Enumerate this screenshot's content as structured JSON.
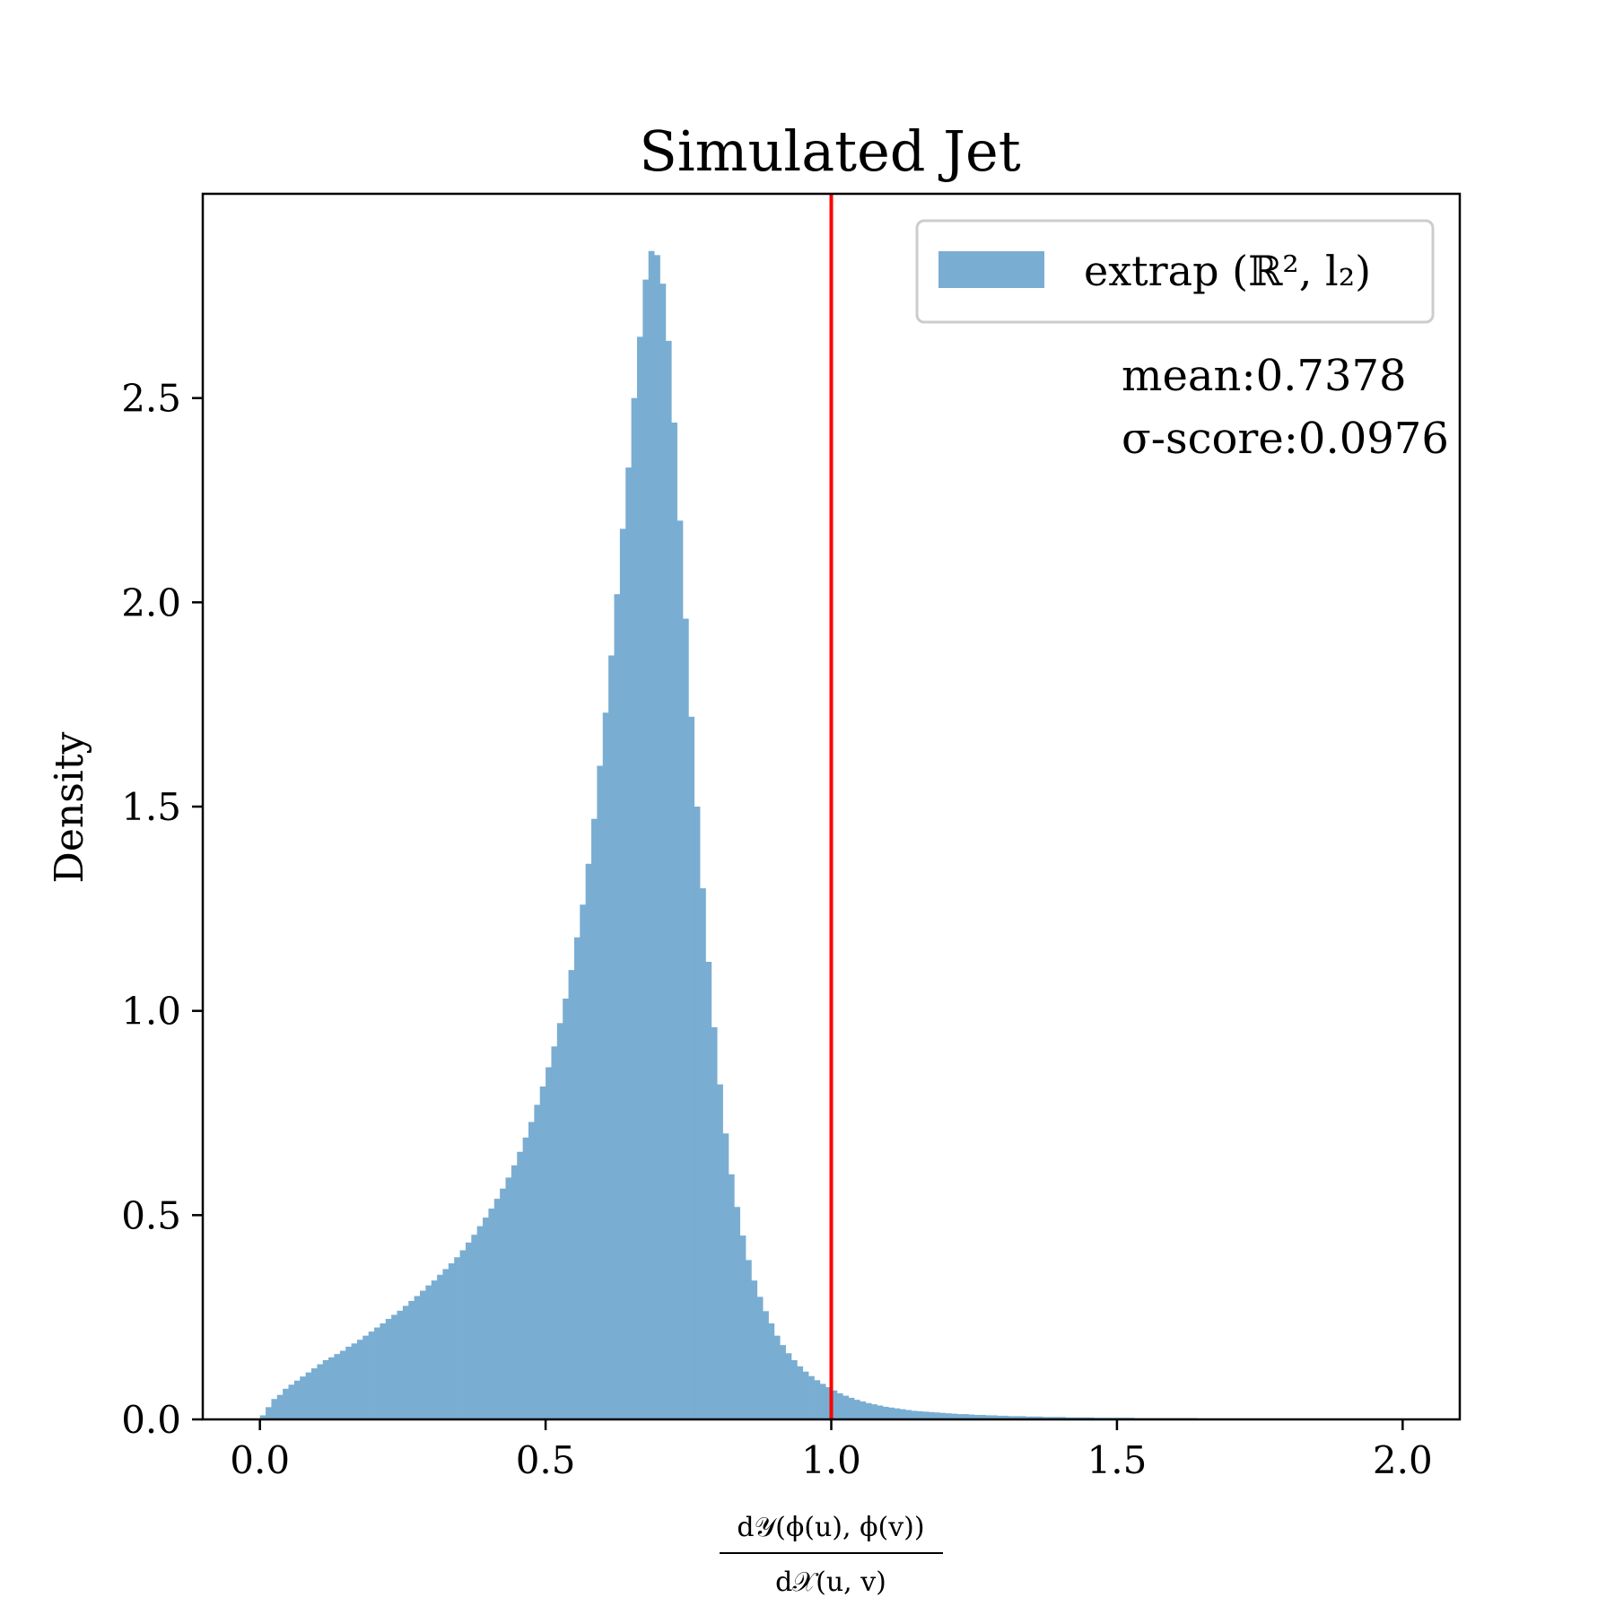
{
  "chart_data": {
    "type": "bar",
    "title": "Simulated Jet",
    "xlabel": {
      "numerator": "d𝒴(ϕ(u), ϕ(v))",
      "denominator": "d𝒳(u, v)"
    },
    "ylabel": "Density",
    "xlim": [
      -0.1,
      2.1
    ],
    "ylim": [
      0,
      3.0
    ],
    "xticks": [
      "0.0",
      "0.5",
      "1.0",
      "1.5",
      "2.0"
    ],
    "yticks": [
      "0.0",
      "0.5",
      "1.0",
      "1.5",
      "2.0",
      "2.5"
    ],
    "bin_range": [
      0.0,
      2.0
    ],
    "series": [
      {
        "name": "extrap (ℝ², l₂)",
        "color": "#7aadd2",
        "values": [
          0.01,
          0.03,
          0.05,
          0.06,
          0.075,
          0.085,
          0.095,
          0.105,
          0.115,
          0.125,
          0.135,
          0.145,
          0.152,
          0.16,
          0.168,
          0.178,
          0.186,
          0.195,
          0.205,
          0.215,
          0.225,
          0.235,
          0.246,
          0.256,
          0.266,
          0.278,
          0.29,
          0.302,
          0.315,
          0.328,
          0.34,
          0.354,
          0.368,
          0.382,
          0.397,
          0.414,
          0.433,
          0.452,
          0.473,
          0.494,
          0.516,
          0.54,
          0.565,
          0.592,
          0.622,
          0.655,
          0.69,
          0.728,
          0.77,
          0.815,
          0.862,
          0.913,
          0.97,
          1.03,
          1.1,
          1.18,
          1.26,
          1.36,
          1.47,
          1.6,
          1.73,
          1.87,
          2.02,
          2.18,
          2.33,
          2.5,
          2.65,
          2.79,
          2.86,
          2.85,
          2.78,
          2.64,
          2.44,
          2.2,
          1.96,
          1.72,
          1.5,
          1.3,
          1.12,
          0.96,
          0.82,
          0.7,
          0.6,
          0.52,
          0.45,
          0.39,
          0.34,
          0.3,
          0.265,
          0.235,
          0.205,
          0.182,
          0.162,
          0.145,
          0.13,
          0.117,
          0.106,
          0.096,
          0.087,
          0.079,
          0.071,
          0.064,
          0.058,
          0.053,
          0.048,
          0.044,
          0.04,
          0.037,
          0.034,
          0.031,
          0.029,
          0.027,
          0.025,
          0.023,
          0.021,
          0.02,
          0.019,
          0.018,
          0.017,
          0.016,
          0.015,
          0.014,
          0.013,
          0.013,
          0.012,
          0.011,
          0.011,
          0.01,
          0.01,
          0.009,
          0.009,
          0.008,
          0.008,
          0.008,
          0.007,
          0.007,
          0.007,
          0.006,
          0.006,
          0.006,
          0.006,
          0.005,
          0.005,
          0.005,
          0.005,
          0.005,
          0.004,
          0.004,
          0.004,
          0.004,
          0.004,
          0.004,
          0.004,
          0.003,
          0.003,
          0.003,
          0.003,
          0.003,
          0.003,
          0.003,
          0.003,
          0.003,
          0.003,
          0.003,
          0.002,
          0.002,
          0.002,
          0.002,
          0.002,
          0.002,
          0.002,
          0.002,
          0.002,
          0.002,
          0.002,
          0.002,
          0.002,
          0.002,
          0.002,
          0.002,
          0.001,
          0.001,
          0.001,
          0.001,
          0.001,
          0.001,
          0.001,
          0.001,
          0.001,
          0.001,
          0.001,
          0.001,
          0.001,
          0.001,
          0.001,
          0.001,
          0.001,
          0.001,
          0.001,
          0.001
        ]
      }
    ],
    "reference_line": {
      "x": 1.0,
      "color": "#ff0000"
    },
    "annotations": [
      "mean:0.7378",
      "σ-score:0.0976"
    ],
    "legend_position": "top-right",
    "grid": false
  }
}
